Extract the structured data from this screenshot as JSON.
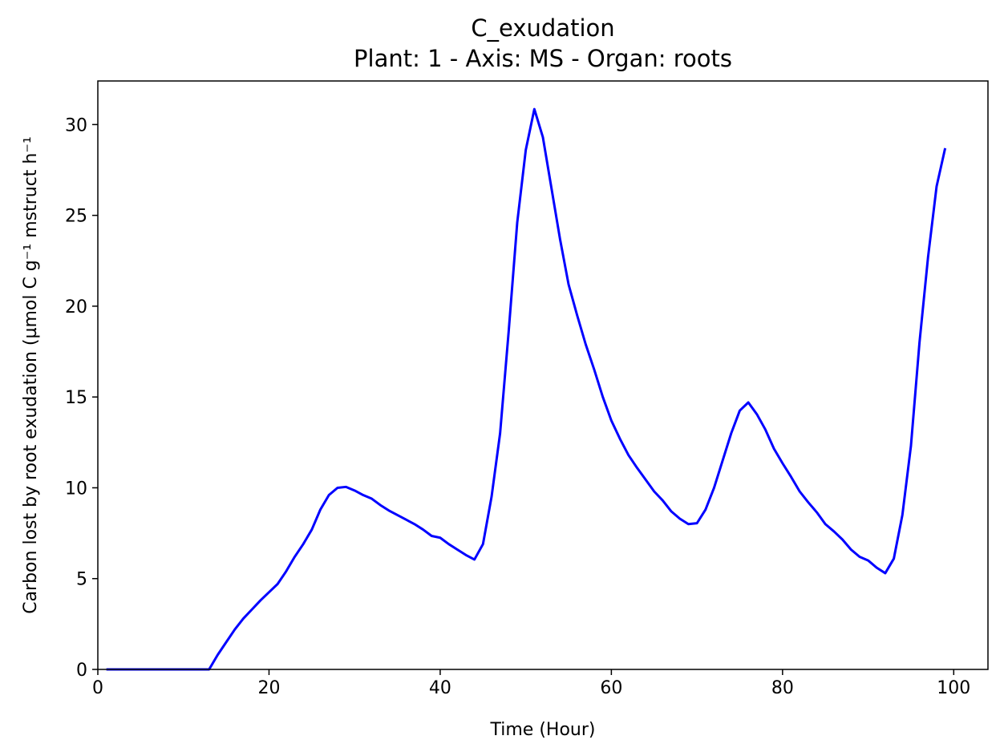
{
  "chart_data": {
    "type": "line",
    "title": "C_exudation",
    "subtitle": "Plant: 1 - Axis: MS - Organ: roots",
    "xlabel": "Time (Hour)",
    "ylabel": "Carbon lost by root exudation (µmol C g⁻¹ mstruct h⁻¹",
    "xlim": [
      0,
      104
    ],
    "ylim": [
      0,
      32.4
    ],
    "xticks": [
      0,
      20,
      40,
      60,
      80,
      100
    ],
    "yticks": [
      0,
      5,
      10,
      15,
      20,
      25,
      30
    ],
    "xtick_labels": [
      "0",
      "20",
      "40",
      "60",
      "80",
      "100"
    ],
    "ytick_labels": [
      "0",
      "5",
      "10",
      "15",
      "20",
      "25",
      "30"
    ],
    "grid": false,
    "series": [
      {
        "color": "#0000ff",
        "x": [
          1,
          2,
          3,
          4,
          5,
          6,
          7,
          8,
          9,
          10,
          11,
          12,
          13,
          14,
          15,
          16,
          17,
          18,
          19,
          20,
          21,
          22,
          23,
          24,
          25,
          26,
          27,
          28,
          29,
          30,
          31,
          32,
          33,
          34,
          35,
          36,
          37,
          38,
          39,
          40,
          41,
          42,
          43,
          44,
          45,
          46,
          47,
          48,
          49,
          50,
          51,
          52,
          53,
          54,
          55,
          56,
          57,
          58,
          59,
          60,
          61,
          62,
          63,
          64,
          65,
          66,
          67,
          68,
          69,
          70,
          71,
          72,
          73,
          74,
          75,
          76,
          77,
          78,
          79,
          80,
          81,
          82,
          83,
          84,
          85,
          86,
          87,
          88,
          89,
          90,
          91,
          92,
          93,
          94,
          95,
          96,
          97,
          98,
          99
        ],
        "y": [
          0,
          0,
          0,
          0,
          0,
          0,
          0,
          0,
          0,
          0,
          0,
          0,
          0,
          0.8,
          1.5,
          2.2,
          2.8,
          3.3,
          3.8,
          4.25,
          4.7,
          5.4,
          6.2,
          6.9,
          7.7,
          8.8,
          9.6,
          10.0,
          10.05,
          9.85,
          9.6,
          9.4,
          9.05,
          8.75,
          8.5,
          8.25,
          8.0,
          7.7,
          7.35,
          7.25,
          6.9,
          6.6,
          6.3,
          6.05,
          6.9,
          9.5,
          13.0,
          18.6,
          24.6,
          28.6,
          30.85,
          29.3,
          26.5,
          23.7,
          21.2,
          19.5,
          17.9,
          16.5,
          15.0,
          13.7,
          12.7,
          11.8,
          11.1,
          10.45,
          9.8,
          9.3,
          8.7,
          8.3,
          8.0,
          8.05,
          8.8,
          10.0,
          11.5,
          13.0,
          14.25,
          14.7,
          14.05,
          13.2,
          12.15,
          11.35,
          10.6,
          9.8,
          9.2,
          8.65,
          8.0,
          7.6,
          7.15,
          6.6,
          6.2,
          6.0,
          5.6,
          5.3,
          6.1,
          8.5,
          12.3,
          18.0,
          22.7,
          26.6,
          28.7
        ]
      }
    ]
  }
}
